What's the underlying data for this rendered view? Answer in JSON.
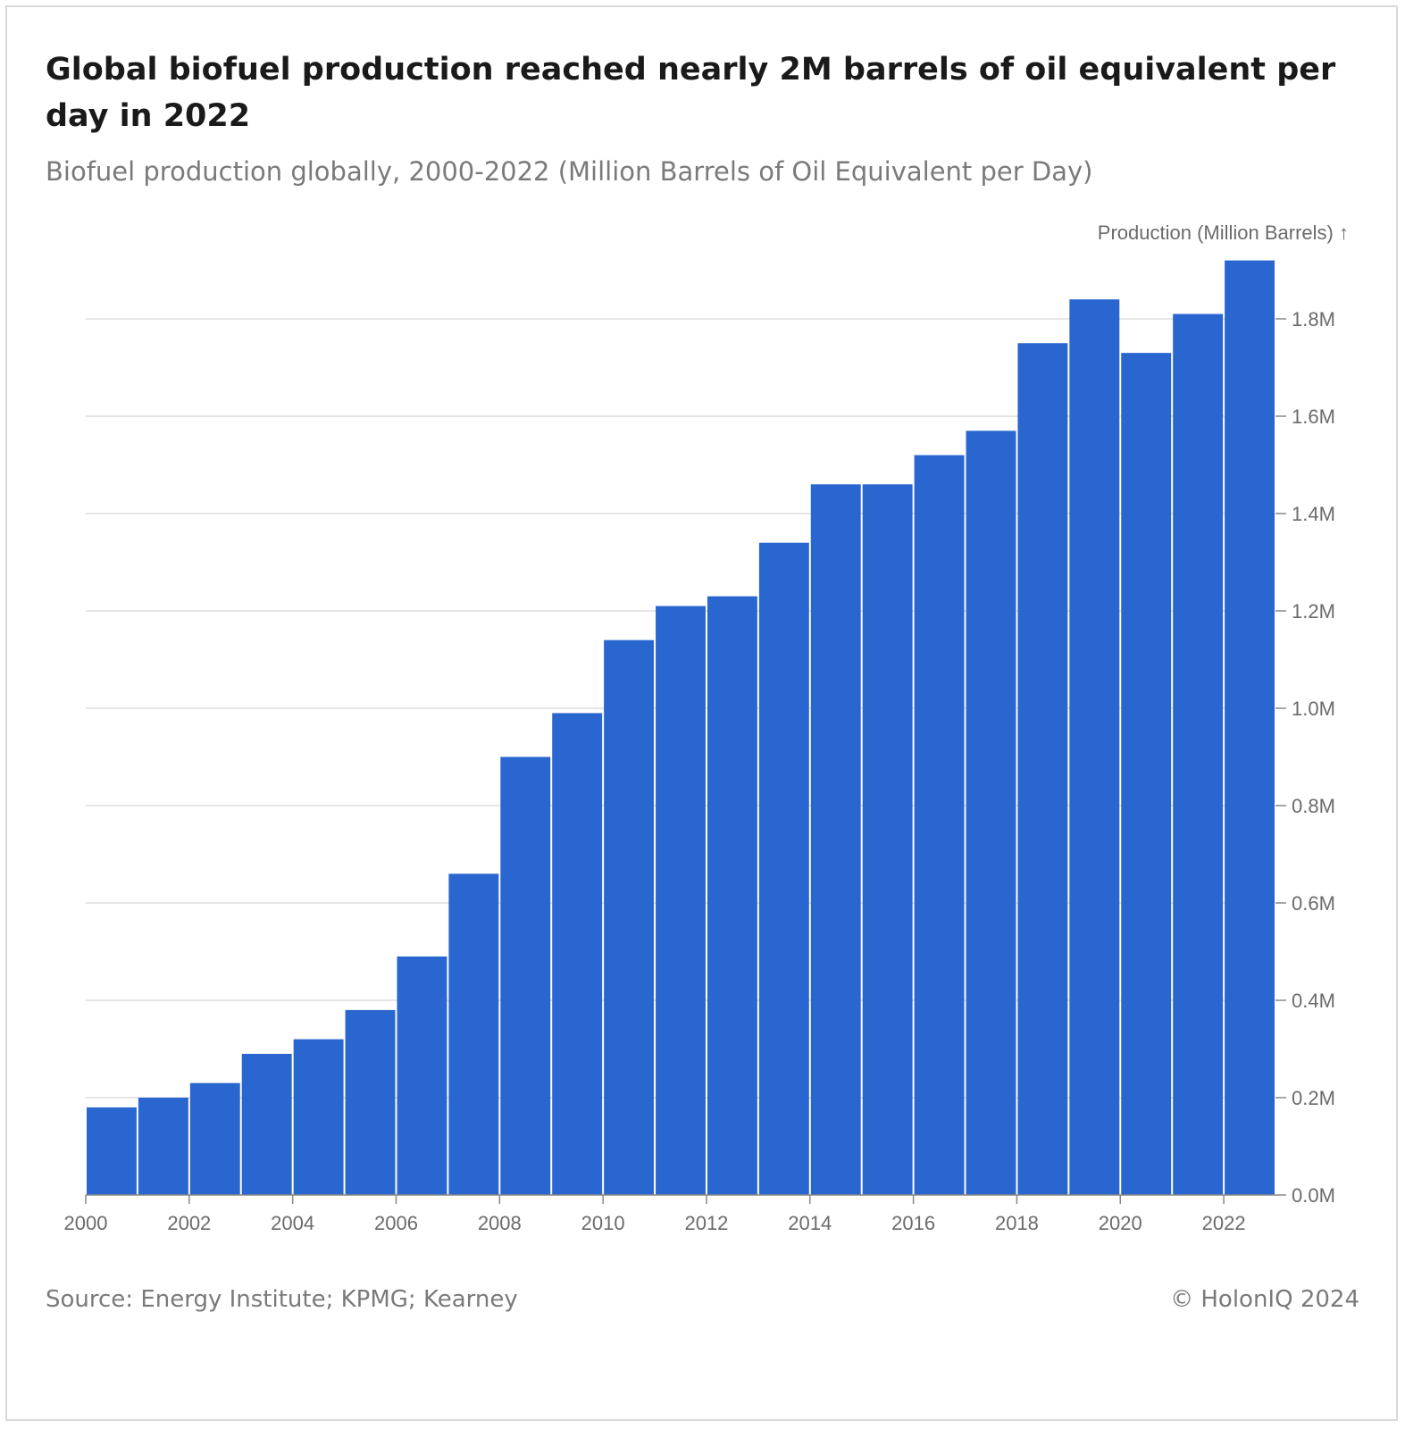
{
  "header": {
    "title": "Global biofuel production reached nearly 2M barrels of oil equivalent per day in 2022",
    "subtitle": "Biofuel production globally, 2000-2022 (Million Barrels of Oil Equivalent per Day)"
  },
  "footer": {
    "source": "Source: Energy Institute; KPMG; Kearney",
    "copyright": "© HolonIQ 2024"
  },
  "colors": {
    "bar": "#2a66cf",
    "grid": "#e6e6e6",
    "axis": "#888888",
    "tick_text": "#6b6b6b"
  },
  "chart_data": {
    "type": "bar",
    "title": "Global biofuel production reached nearly 2M barrels of oil equivalent per day in 2022",
    "subtitle": "Biofuel production globally, 2000-2022 (Million Barrels of Oil Equivalent per Day)",
    "xlabel": "",
    "ylabel": "Production (Million Barrels) ↑",
    "y_axis_position": "right",
    "grid": true,
    "ylim": [
      0,
      1.9
    ],
    "y_ticks": [
      0,
      0.2,
      0.4,
      0.6,
      0.8,
      1.0,
      1.2,
      1.4,
      1.6,
      1.8
    ],
    "y_tick_labels": [
      "0.0M",
      "0.2M",
      "0.4M",
      "0.6M",
      "0.8M",
      "1.0M",
      "1.2M",
      "1.4M",
      "1.6M",
      "1.8M"
    ],
    "x_tick_labels": [
      "2000",
      "2002",
      "2004",
      "2006",
      "2008",
      "2010",
      "2012",
      "2014",
      "2016",
      "2018",
      "2020",
      "2022"
    ],
    "categories": [
      2000,
      2001,
      2002,
      2003,
      2004,
      2005,
      2006,
      2007,
      2008,
      2009,
      2010,
      2011,
      2012,
      2013,
      2014,
      2015,
      2016,
      2017,
      2018,
      2019,
      2020,
      2021,
      2022
    ],
    "values": [
      0.18,
      0.2,
      0.23,
      0.29,
      0.32,
      0.38,
      0.49,
      0.66,
      0.9,
      0.99,
      1.14,
      1.21,
      1.23,
      1.34,
      1.46,
      1.46,
      1.52,
      1.57,
      1.75,
      1.84,
      1.73,
      1.81,
      1.92
    ]
  }
}
